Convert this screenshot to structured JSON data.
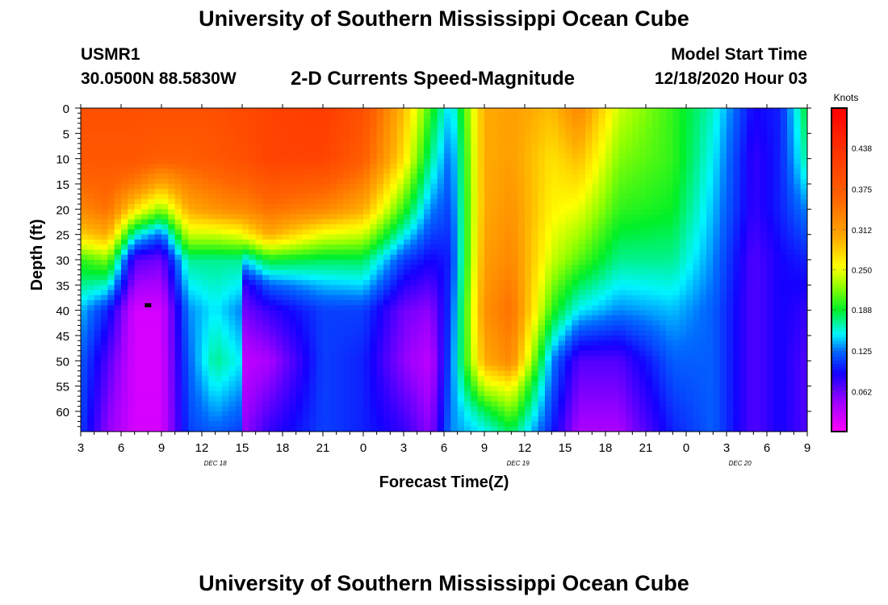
{
  "header": {
    "title": "University of Southern Mississippi Ocean Cube",
    "station_id": "USMR1",
    "coordinates": "30.0500N 88.5830W",
    "subtitle": "2-D Currents Speed-Magnitude",
    "model_start_label": "Model Start Time",
    "model_start_value": "12/18/2020 Hour 03"
  },
  "footer": {
    "title": "University of Southern Mississippi Ocean Cube"
  },
  "chart_data": {
    "type": "heatmap",
    "title": "2-D Currents Speed-Magnitude",
    "xlabel": "Forecast Time(Z)",
    "ylabel": "Depth (ft)",
    "x_hours_from_start": [
      0,
      54
    ],
    "x_tick_labels": [
      "3",
      "6",
      "9",
      "12",
      "15",
      "18",
      "21",
      "0",
      "3",
      "6",
      "9",
      "12",
      "15",
      "18",
      "21",
      "0",
      "3",
      "6",
      "9"
    ],
    "date_labels": [
      {
        "text": "DEC 18",
        "hour_offset": 10
      },
      {
        "text": "DEC 19",
        "hour_offset": 32.5
      },
      {
        "text": "DEC 20",
        "hour_offset": 49
      }
    ],
    "y_ticks": [
      0,
      5,
      10,
      15,
      20,
      25,
      30,
      35,
      40,
      45,
      50,
      55,
      60
    ],
    "ylim": [
      0,
      64
    ],
    "colorbar": {
      "label": "Knots",
      "range": [
        0.0,
        0.5
      ],
      "tick_labels": [
        "0.438",
        "0.375",
        "0.312",
        "0.250",
        "0.188",
        "0.125",
        "0.062"
      ]
    },
    "speed_profiles_knots": [
      {
        "hour": 0,
        "depth": [
          0,
          10,
          20,
          25,
          30,
          40,
          50,
          64
        ],
        "speed": [
          0.39,
          0.38,
          0.33,
          0.28,
          0.2,
          0.14,
          0.12,
          0.11
        ]
      },
      {
        "hour": 2,
        "depth": [
          0,
          10,
          20,
          25,
          30,
          40,
          50,
          64
        ],
        "speed": [
          0.39,
          0.38,
          0.35,
          0.3,
          0.22,
          0.1,
          0.07,
          0.05
        ]
      },
      {
        "hour": 4,
        "depth": [
          0,
          10,
          15,
          20,
          25,
          30,
          40,
          50,
          64
        ],
        "speed": [
          0.39,
          0.38,
          0.34,
          0.27,
          0.16,
          0.07,
          0.02,
          0.02,
          0.02
        ]
      },
      {
        "hour": 6,
        "depth": [
          0,
          10,
          15,
          20,
          25,
          30,
          40,
          50,
          64
        ],
        "speed": [
          0.39,
          0.37,
          0.3,
          0.22,
          0.12,
          0.06,
          0.02,
          0.02,
          0.02
        ]
      },
      {
        "hour": 8,
        "depth": [
          0,
          10,
          20,
          25,
          30,
          40,
          50,
          64
        ],
        "speed": [
          0.39,
          0.37,
          0.3,
          0.24,
          0.17,
          0.13,
          0.12,
          0.11
        ]
      },
      {
        "hour": 10,
        "depth": [
          0,
          10,
          20,
          25,
          30,
          40,
          50,
          64
        ],
        "speed": [
          0.39,
          0.38,
          0.32,
          0.24,
          0.17,
          0.15,
          0.17,
          0.12
        ]
      },
      {
        "hour": 11.8,
        "depth": [
          0,
          10,
          20,
          25,
          30,
          40,
          50,
          64
        ],
        "speed": [
          0.4,
          0.39,
          0.33,
          0.25,
          0.17,
          0.13,
          0.15,
          0.11
        ]
      },
      {
        "hour": 12.2,
        "depth": [
          0,
          10,
          20,
          25,
          30,
          35,
          40,
          50,
          64
        ],
        "speed": [
          0.4,
          0.39,
          0.33,
          0.26,
          0.15,
          0.08,
          0.06,
          0.03,
          0.05
        ]
      },
      {
        "hour": 14,
        "depth": [
          0,
          10,
          20,
          25,
          30,
          35,
          40,
          50,
          64
        ],
        "speed": [
          0.41,
          0.41,
          0.35,
          0.3,
          0.19,
          0.12,
          0.08,
          0.04,
          0.08
        ]
      },
      {
        "hour": 18,
        "depth": [
          0,
          10,
          20,
          25,
          30,
          35,
          40,
          50,
          64
        ],
        "speed": [
          0.42,
          0.41,
          0.33,
          0.25,
          0.18,
          0.14,
          0.11,
          0.11,
          0.11
        ]
      },
      {
        "hour": 21,
        "depth": [
          0,
          10,
          20,
          30,
          40,
          50,
          64
        ],
        "speed": [
          0.39,
          0.37,
          0.3,
          0.18,
          0.11,
          0.1,
          0.1
        ]
      },
      {
        "hour": 24,
        "depth": [
          0,
          10,
          20,
          30,
          40,
          50,
          64
        ],
        "speed": [
          0.29,
          0.27,
          0.2,
          0.11,
          0.06,
          0.05,
          0.08
        ]
      },
      {
        "hour": 26,
        "depth": [
          0,
          10,
          20,
          30,
          40,
          50,
          64
        ],
        "speed": [
          0.2,
          0.17,
          0.13,
          0.09,
          0.05,
          0.03,
          0.05
        ]
      },
      {
        "hour": 27.5,
        "depth": [
          0,
          10,
          20,
          30,
          40,
          50,
          64
        ],
        "speed": [
          0.14,
          0.12,
          0.11,
          0.1,
          0.11,
          0.12,
          0.13
        ]
      },
      {
        "hour": 30,
        "depth": [
          0,
          10,
          20,
          30,
          40,
          50,
          60,
          64
        ],
        "speed": [
          0.3,
          0.3,
          0.3,
          0.31,
          0.32,
          0.3,
          0.18,
          0.15
        ]
      },
      {
        "hour": 32,
        "depth": [
          0,
          10,
          20,
          30,
          40,
          50,
          55,
          64
        ],
        "speed": [
          0.31,
          0.31,
          0.32,
          0.33,
          0.35,
          0.33,
          0.26,
          0.18
        ]
      },
      {
        "hour": 35,
        "depth": [
          0,
          10,
          20,
          30,
          40,
          50,
          64
        ],
        "speed": [
          0.29,
          0.27,
          0.26,
          0.24,
          0.2,
          0.13,
          0.1
        ]
      },
      {
        "hour": 37,
        "depth": [
          0,
          10,
          20,
          30,
          40,
          50,
          64
        ],
        "speed": [
          0.33,
          0.29,
          0.25,
          0.21,
          0.15,
          0.07,
          0.04
        ]
      },
      {
        "hour": 40,
        "depth": [
          0,
          10,
          20,
          30,
          40,
          50,
          64
        ],
        "speed": [
          0.24,
          0.22,
          0.2,
          0.17,
          0.13,
          0.07,
          0.04
        ]
      },
      {
        "hour": 44,
        "depth": [
          0,
          10,
          20,
          30,
          40,
          50,
          64
        ],
        "speed": [
          0.2,
          0.2,
          0.19,
          0.17,
          0.14,
          0.12,
          0.1
        ]
      },
      {
        "hour": 47,
        "depth": [
          0,
          10,
          20,
          30,
          40,
          50,
          64
        ],
        "speed": [
          0.16,
          0.15,
          0.14,
          0.13,
          0.12,
          0.12,
          0.12
        ]
      },
      {
        "hour": 50,
        "depth": [
          0,
          10,
          20,
          30,
          40,
          50,
          64
        ],
        "speed": [
          0.09,
          0.08,
          0.08,
          0.07,
          0.07,
          0.07,
          0.07
        ]
      },
      {
        "hour": 52,
        "depth": [
          0,
          10,
          20,
          30,
          40,
          50,
          64
        ],
        "speed": [
          0.1,
          0.1,
          0.1,
          0.09,
          0.09,
          0.09,
          0.09
        ]
      },
      {
        "hour": 54,
        "depth": [
          0,
          10,
          20,
          30,
          40,
          50,
          64
        ],
        "speed": [
          0.19,
          0.17,
          0.13,
          0.1,
          0.08,
          0.07,
          0.07
        ]
      }
    ],
    "marker": {
      "hour": 5,
      "depth": 39
    }
  }
}
